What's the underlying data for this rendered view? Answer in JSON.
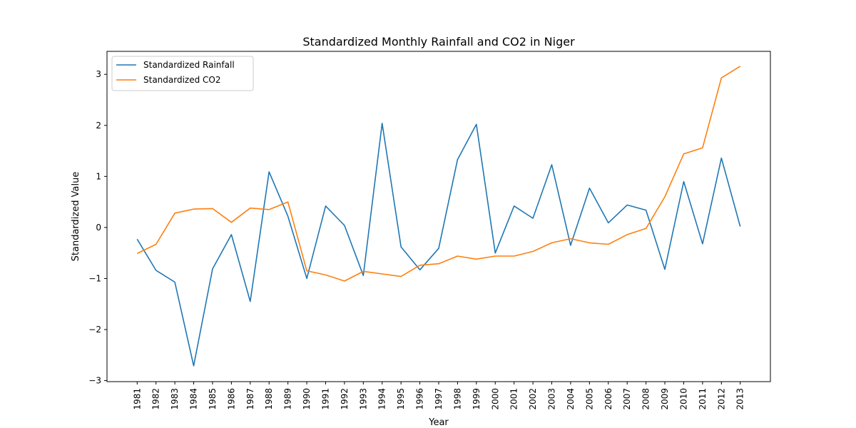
{
  "chart_data": {
    "type": "line",
    "title": "Standardized Monthly Rainfall and CO2 in Niger",
    "xlabel": "Year",
    "ylabel": "Standardized Value",
    "x": [
      1981,
      1982,
      1983,
      1984,
      1985,
      1986,
      1987,
      1988,
      1989,
      1990,
      1991,
      1992,
      1993,
      1994,
      1995,
      1996,
      1997,
      1998,
      1999,
      2000,
      2001,
      2002,
      2003,
      2004,
      2005,
      2006,
      2007,
      2008,
      2009,
      2010,
      2011,
      2012,
      2013
    ],
    "x_tick_labels": [
      "1981",
      "1982",
      "1983",
      "1984",
      "1985",
      "1986",
      "1987",
      "1988",
      "1989",
      "1990",
      "1991",
      "1992",
      "1993",
      "1994",
      "1995",
      "1996",
      "1997",
      "1998",
      "1999",
      "2000",
      "2001",
      "2002",
      "2003",
      "2004",
      "2005",
      "2006",
      "2007",
      "2008",
      "2009",
      "2010",
      "2011",
      "2012",
      "2013"
    ],
    "y_ticks": [
      -3,
      -2,
      -1,
      0,
      1,
      2,
      3
    ],
    "y_tick_labels": [
      "−3",
      "−2",
      "−1",
      "0",
      "1",
      "2",
      "3"
    ],
    "xlim": [
      1979.4,
      2014.6
    ],
    "ylim": [
      -3.02,
      3.45
    ],
    "grid": false,
    "legend_position": "top-left",
    "series": [
      {
        "name": "Standardized Rainfall",
        "color": "#1f77b4",
        "values": [
          -0.23,
          -0.84,
          -1.07,
          -2.71,
          -0.81,
          -0.14,
          -1.45,
          1.09,
          0.22,
          -1.0,
          0.42,
          0.04,
          -0.94,
          2.04,
          -0.38,
          -0.83,
          -0.41,
          1.33,
          2.02,
          -0.5,
          0.42,
          0.18,
          1.23,
          -0.35,
          0.77,
          0.09,
          0.44,
          0.34,
          -0.82,
          0.9,
          -0.32,
          1.36,
          0.02
        ]
      },
      {
        "name": "Standardized CO2",
        "color": "#ff7f0e",
        "values": [
          -0.51,
          -0.33,
          0.28,
          0.36,
          0.37,
          0.1,
          0.38,
          0.35,
          0.5,
          -0.85,
          -0.93,
          -1.05,
          -0.86,
          -0.91,
          -0.96,
          -0.74,
          -0.71,
          -0.56,
          -0.62,
          -0.56,
          -0.56,
          -0.47,
          -0.3,
          -0.22,
          -0.3,
          -0.33,
          -0.14,
          -0.02,
          0.6,
          1.44,
          1.56,
          2.93,
          3.16
        ]
      }
    ]
  }
}
